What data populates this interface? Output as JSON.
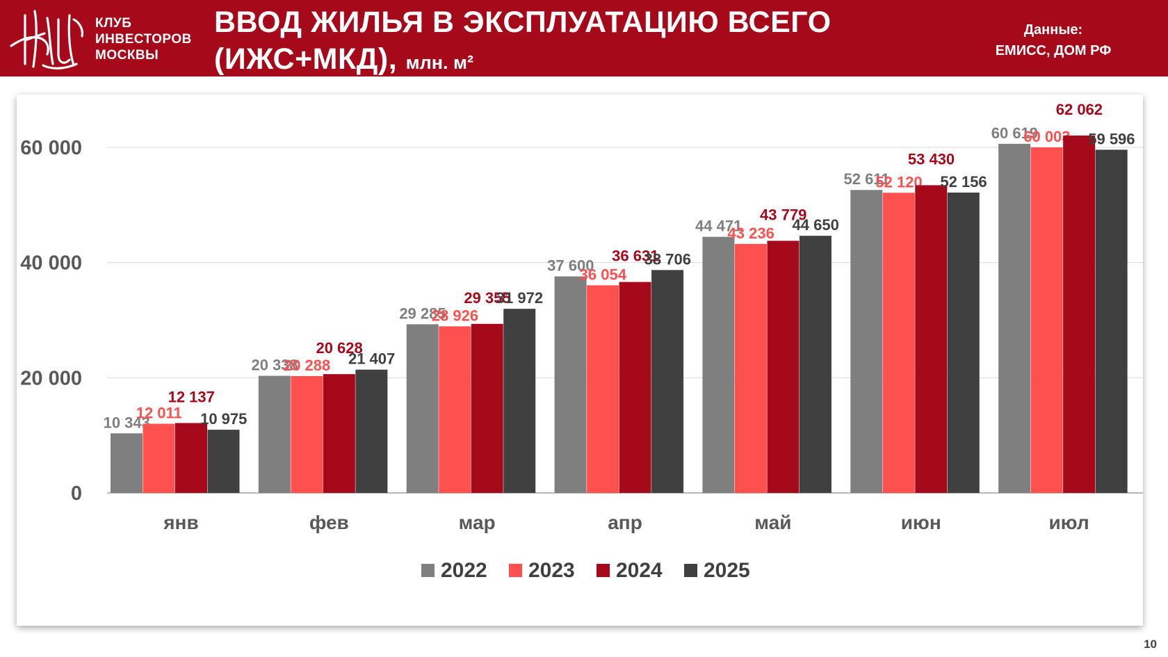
{
  "header": {
    "logo_lines": [
      "КЛУБ",
      "ИНВЕСТОРОВ",
      "МОСКВЫ"
    ],
    "title_line1": "ВВОД ЖИЛЬЯ В ЭКСПЛУАТАЦИЮ ВСЕГО",
    "title_line2": "(ИЖС+МКД),",
    "title_unit": "млн. м²",
    "source_label": "Данные:",
    "source_value": "ЕМИСС, ДОМ РФ",
    "brand_color": "#a6091a"
  },
  "page_number": "10",
  "chart_data": {
    "type": "bar",
    "categories": [
      "янв",
      "фев",
      "мар",
      "апр",
      "май",
      "июн",
      "июл"
    ],
    "series": [
      {
        "name": "2022",
        "color": "#7f7f7f",
        "values": [
          10343,
          20338,
          29285,
          37600,
          44471,
          52611,
          60619
        ],
        "labels": [
          "10 343",
          "20 338",
          "29 285",
          "37 600",
          "44 471",
          "52 611",
          "60 619"
        ]
      },
      {
        "name": "2023",
        "color": "#ff5050",
        "values": [
          12011,
          20288,
          28926,
          36054,
          43236,
          52120,
          60003
        ],
        "labels": [
          "12 011",
          "20 288",
          "28 926",
          "36 054",
          "43 236",
          "52 120",
          "60 003"
        ]
      },
      {
        "name": "2024",
        "color": "#a6091a",
        "values": [
          12137,
          20628,
          29355,
          36631,
          43779,
          53430,
          62062
        ],
        "labels": [
          "12 137",
          "20 628",
          "29 355",
          "36 631",
          "43 779",
          "53 430",
          "62 062"
        ]
      },
      {
        "name": "2025",
        "color": "#404040",
        "values": [
          10975,
          21407,
          31972,
          38706,
          44650,
          52156,
          59596
        ],
        "labels": [
          "10 975",
          "21 407",
          "31 972",
          "38 706",
          "44 650",
          "52 156",
          "59 596"
        ]
      }
    ],
    "yticks": [
      0,
      20000,
      40000,
      60000
    ],
    "ytick_labels": [
      "0",
      "20 000",
      "40 000",
      "60 000"
    ],
    "ylim": [
      0,
      70000
    ],
    "grid": true,
    "legend_position": "bottom-center",
    "xlabel": "",
    "ylabel": ""
  }
}
